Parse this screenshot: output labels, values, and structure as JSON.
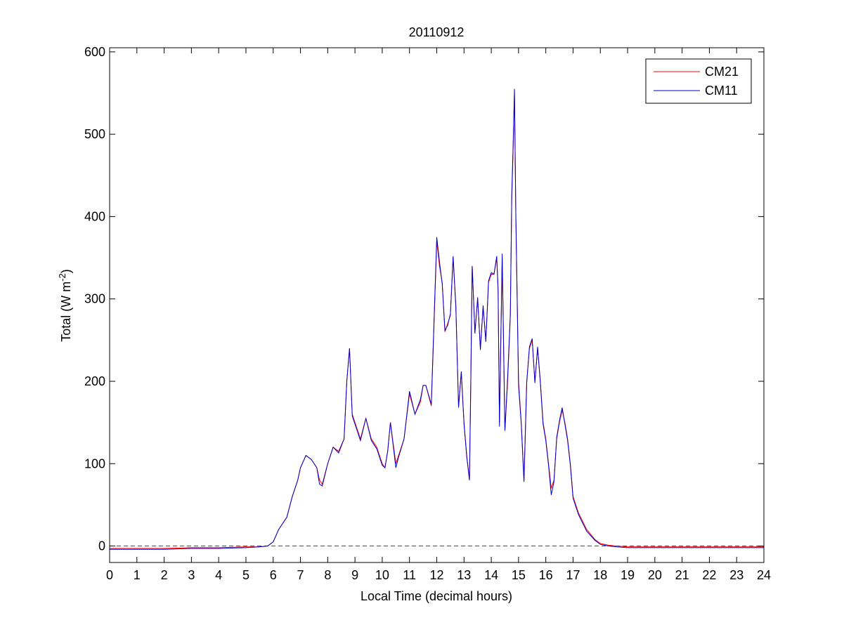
{
  "chart_data": {
    "type": "line",
    "title": "20110912",
    "xlabel": "Local Time (decimal hours)",
    "ylabel_main": "Total (W m",
    "ylabel_sup": "-2",
    "ylabel_close": ")",
    "xlim": [
      0,
      24
    ],
    "ylim": [
      -20,
      605
    ],
    "xticks": [
      0,
      1,
      2,
      3,
      4,
      5,
      6,
      7,
      8,
      9,
      10,
      11,
      12,
      13,
      14,
      15,
      16,
      17,
      18,
      19,
      20,
      21,
      22,
      23,
      24
    ],
    "yticks": [
      0,
      100,
      200,
      300,
      400,
      500,
      600
    ],
    "grid": false,
    "legend_position": "top-right",
    "reference_line": {
      "y": 0,
      "color": "#ff0000",
      "style": "dashed"
    },
    "series": [
      {
        "name": "CM21",
        "color": "#ff0000",
        "x": [
          0,
          1,
          2,
          3,
          4,
          5,
          5.5,
          5.8,
          6,
          6.2,
          6.5,
          6.7,
          6.9,
          7.0,
          7.2,
          7.4,
          7.5,
          7.6,
          7.7,
          7.8,
          8.0,
          8.2,
          8.4,
          8.6,
          8.7,
          8.8,
          8.9,
          9.0,
          9.2,
          9.4,
          9.6,
          9.8,
          10.0,
          10.1,
          10.2,
          10.3,
          10.5,
          10.6,
          10.8,
          11.0,
          11.2,
          11.4,
          11.5,
          11.6,
          11.8,
          12.0,
          12.1,
          12.2,
          12.3,
          12.4,
          12.5,
          12.6,
          12.7,
          12.8,
          12.9,
          13.0,
          13.1,
          13.2,
          13.25,
          13.3,
          13.4,
          13.5,
          13.6,
          13.7,
          13.8,
          13.9,
          14.0,
          14.1,
          14.2,
          14.25,
          14.3,
          14.4,
          14.5,
          14.6,
          14.7,
          14.75,
          14.8,
          14.85,
          14.9,
          15.0,
          15.1,
          15.2,
          15.3,
          15.4,
          15.5,
          15.6,
          15.7,
          15.8,
          15.9,
          16.0,
          16.1,
          16.2,
          16.3,
          16.4,
          16.5,
          16.6,
          16.7,
          16.8,
          16.9,
          17.0,
          17.2,
          17.5,
          17.8,
          18.0,
          18.3,
          18.6,
          19,
          20,
          21,
          22,
          23,
          24
        ],
        "values": [
          -3,
          -3,
          -3,
          -2,
          -2,
          -1,
          -1,
          0,
          5,
          20,
          35,
          60,
          80,
          95,
          110,
          105,
          100,
          95,
          80,
          75,
          100,
          120,
          115,
          130,
          200,
          240,
          160,
          150,
          130,
          155,
          130,
          120,
          100,
          95,
          115,
          150,
          100,
          110,
          130,
          185,
          160,
          175,
          195,
          195,
          170,
          370,
          340,
          320,
          260,
          270,
          280,
          350,
          290,
          170,
          210,
          150,
          110,
          80,
          200,
          340,
          260,
          300,
          240,
          290,
          250,
          320,
          330,
          330,
          350,
          310,
          150,
          350,
          140,
          200,
          280,
          420,
          480,
          550,
          400,
          200,
          150,
          80,
          200,
          240,
          250,
          200,
          240,
          200,
          150,
          130,
          100,
          70,
          80,
          130,
          150,
          165,
          150,
          130,
          100,
          60,
          40,
          20,
          8,
          3,
          1,
          0,
          -1,
          -1,
          -1,
          -1,
          -1,
          -1
        ]
      },
      {
        "name": "CM11",
        "color": "#0000cc",
        "x": [
          0,
          1,
          2,
          3,
          4,
          5,
          5.5,
          5.8,
          6,
          6.2,
          6.5,
          6.7,
          6.9,
          7.0,
          7.2,
          7.4,
          7.5,
          7.6,
          7.7,
          7.8,
          8.0,
          8.2,
          8.4,
          8.6,
          8.7,
          8.8,
          8.9,
          9.0,
          9.2,
          9.4,
          9.6,
          9.8,
          10.0,
          10.1,
          10.2,
          10.3,
          10.5,
          10.6,
          10.8,
          11.0,
          11.2,
          11.4,
          11.5,
          11.6,
          11.8,
          12.0,
          12.1,
          12.2,
          12.3,
          12.4,
          12.5,
          12.6,
          12.7,
          12.8,
          12.9,
          13.0,
          13.1,
          13.2,
          13.25,
          13.3,
          13.4,
          13.5,
          13.6,
          13.7,
          13.8,
          13.9,
          14.0,
          14.1,
          14.2,
          14.25,
          14.3,
          14.4,
          14.5,
          14.6,
          14.7,
          14.75,
          14.8,
          14.85,
          14.9,
          15.0,
          15.1,
          15.2,
          15.3,
          15.4,
          15.5,
          15.6,
          15.7,
          15.8,
          15.9,
          16.0,
          16.1,
          16.2,
          16.3,
          16.4,
          16.5,
          16.6,
          16.7,
          16.8,
          16.9,
          17.0,
          17.2,
          17.5,
          17.8,
          18.0,
          18.3,
          18.6,
          19,
          20,
          21,
          22,
          23,
          24
        ],
        "values": [
          -4,
          -4,
          -4,
          -3,
          -3,
          -2,
          -1,
          0,
          5,
          20,
          35,
          60,
          80,
          95,
          110,
          105,
          100,
          95,
          75,
          73,
          100,
          120,
          113,
          130,
          200,
          240,
          158,
          148,
          128,
          155,
          128,
          118,
          98,
          95,
          115,
          150,
          95,
          108,
          130,
          188,
          160,
          178,
          195,
          195,
          172,
          375,
          345,
          318,
          262,
          268,
          282,
          352,
          292,
          168,
          212,
          148,
          108,
          80,
          205,
          340,
          258,
          302,
          238,
          292,
          248,
          322,
          332,
          330,
          352,
          312,
          145,
          355,
          140,
          205,
          282,
          425,
          485,
          555,
          405,
          195,
          148,
          78,
          198,
          242,
          252,
          198,
          242,
          198,
          148,
          128,
          98,
          62,
          78,
          132,
          152,
          168,
          148,
          128,
          98,
          58,
          38,
          18,
          7,
          2,
          0,
          -1,
          -2,
          -2,
          -2,
          -2,
          -2,
          -2
        ]
      }
    ]
  }
}
